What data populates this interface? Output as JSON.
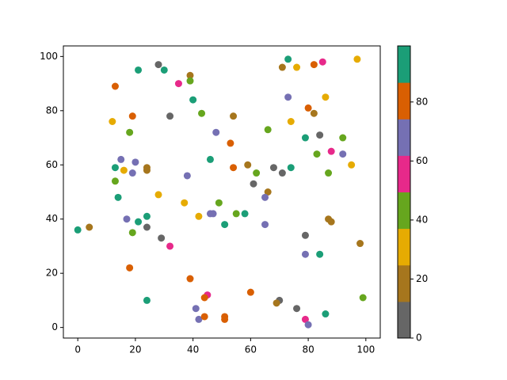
{
  "chart_data": {
    "type": "scatter",
    "xlim": [
      -5,
      105
    ],
    "xticks": [
      0,
      20,
      40,
      60,
      80,
      100
    ],
    "ylim": [
      -3.9,
      103.9
    ],
    "yticks": [
      0,
      20,
      40,
      60,
      80,
      100
    ],
    "colorbar": {
      "lim": [
        0,
        99
      ],
      "ticks": [
        0,
        20,
        40,
        60,
        80
      ],
      "colors": [
        "#666666",
        "#a6761d",
        "#e6ab02",
        "#66a61e",
        "#e7298a",
        "#7570b3",
        "#d95f02",
        "#1b9e77"
      ]
    },
    "series": [
      {
        "color": "#1b9e77",
        "x": [
          0,
          21,
          30,
          73,
          40,
          13,
          46,
          14,
          24,
          21,
          51,
          58,
          74,
          79,
          84,
          24,
          86
        ],
        "values": [
          36,
          95,
          95,
          99,
          84,
          59,
          62,
          48,
          41,
          39,
          38,
          42,
          59,
          70,
          27,
          10,
          5
        ]
      },
      {
        "color": "#666666",
        "x": [
          28,
          32,
          24,
          29,
          61,
          68,
          71,
          84,
          79,
          70,
          76
        ],
        "values": [
          97,
          78,
          37,
          33,
          53,
          59,
          57,
          71,
          34,
          10,
          7
        ]
      },
      {
        "color": "#a6761d",
        "x": [
          4,
          39,
          24,
          24,
          54,
          59,
          66,
          71,
          82,
          87,
          88,
          98,
          69
        ],
        "values": [
          37,
          93,
          59,
          58,
          78,
          60,
          50,
          96,
          79,
          40,
          39,
          31,
          9
        ]
      },
      {
        "color": "#e6ab02",
        "x": [
          12,
          16,
          28,
          37,
          42,
          76,
          74,
          86,
          95,
          97
        ],
        "values": [
          76,
          58,
          49,
          46,
          41,
          96,
          76,
          85,
          60,
          99
        ]
      },
      {
        "color": "#66a61e",
        "x": [
          39,
          43,
          18,
          13,
          19,
          49,
          55,
          62,
          66,
          83,
          87,
          92,
          99
        ],
        "values": [
          91,
          79,
          72,
          54,
          35,
          46,
          42,
          57,
          73,
          64,
          57,
          70,
          11
        ]
      },
      {
        "color": "#e7298a",
        "x": [
          35,
          85,
          32,
          45,
          88,
          79
        ],
        "values": [
          90,
          98,
          30,
          12,
          65,
          3
        ]
      },
      {
        "color": "#7570b3",
        "x": [
          15,
          20,
          19,
          17,
          38,
          48,
          46,
          47,
          65,
          65,
          73,
          79,
          80,
          92,
          41,
          42
        ],
        "values": [
          62,
          61,
          57,
          40,
          56,
          72,
          42,
          42,
          48,
          38,
          85,
          27,
          1,
          64,
          7,
          3
        ]
      },
      {
        "color": "#d95f02",
        "x": [
          13,
          19,
          18,
          39,
          44,
          44,
          51,
          51,
          53,
          54,
          60,
          80,
          82
        ],
        "values": [
          89,
          78,
          22,
          18,
          11,
          4,
          4,
          3,
          68,
          59,
          13,
          81,
          97
        ]
      }
    ]
  }
}
